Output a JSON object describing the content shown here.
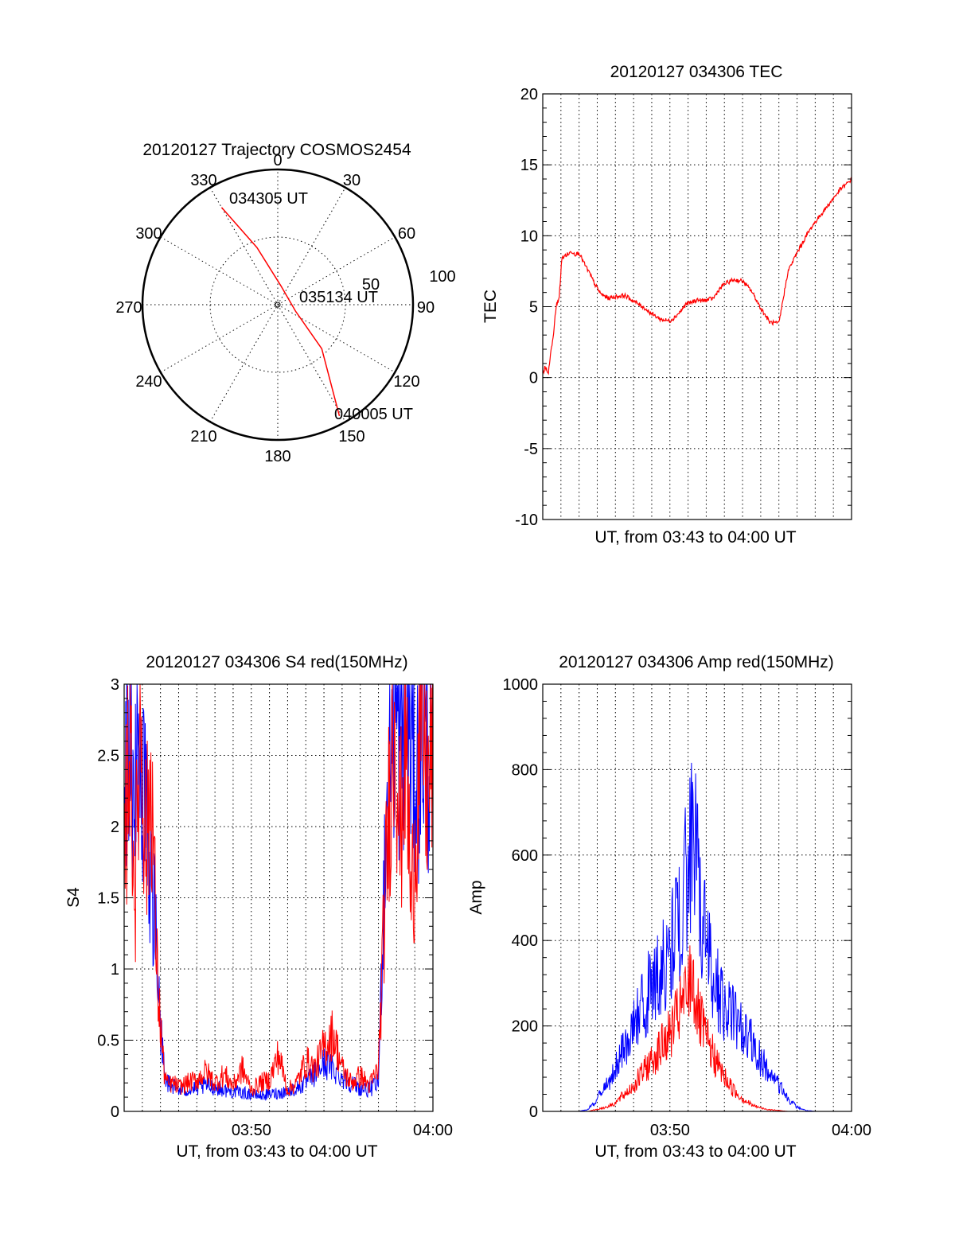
{
  "chart_data": [
    {
      "type": "polar",
      "title": "20120127 Trajectory COSMOS2454",
      "azimuth_labels": [
        "0",
        "30",
        "60",
        "90",
        "120",
        "150",
        "180",
        "210",
        "240",
        "270",
        "300",
        "330"
      ],
      "radial_labels": [
        "50",
        "100"
      ],
      "r_range": [
        0,
        100
      ],
      "grid": true,
      "colors": {
        "track": "#ff0000"
      },
      "track": {
        "points": [
          {
            "az": 330,
            "r": 83
          },
          {
            "az": 340,
            "r": 45
          },
          {
            "az": 10,
            "r": 14
          },
          {
            "az": 110,
            "r": 14
          },
          {
            "az": 135,
            "r": 46
          },
          {
            "az": 151,
            "r": 94
          }
        ],
        "annotations": [
          {
            "text": "034305 UT",
            "az": 330,
            "r": 83
          },
          {
            "text": "035134 UT",
            "az": 100,
            "r": 16
          },
          {
            "text": "040005 UT",
            "az": 151,
            "r": 94
          }
        ]
      }
    },
    {
      "type": "line",
      "title": "20120127 034306 TEC",
      "xlabel": "UT, from 03:43 to 04:00 UT",
      "ylabel": "TEC",
      "xlim": [
        0,
        17
      ],
      "ylim": [
        -10,
        20
      ],
      "yticks": [
        "20",
        "15",
        "10",
        "5",
        "0",
        "-5",
        "-10"
      ],
      "xticks": [],
      "grid": true,
      "series": [
        {
          "color": "#ff0000",
          "x": [
            0,
            0.15,
            0.3,
            0.45,
            0.6,
            0.75,
            0.9,
            1.05,
            1.2,
            1.4,
            1.6,
            1.8,
            2,
            2.3,
            2.6,
            2.9,
            3.2,
            3.6,
            4,
            4.5,
            5,
            5.5,
            6,
            6.5,
            7,
            7.3,
            7.6,
            7.9,
            8.2,
            8.5,
            8.8,
            9.1,
            9.4,
            9.7,
            10,
            10.5,
            11,
            11.5,
            12,
            12.5,
            13,
            13.5,
            14,
            14.3,
            14.6,
            14.9,
            15.2,
            15.5,
            15.8,
            16.1,
            16.4,
            16.7,
            17
          ],
          "y": [
            0.3,
            0.8,
            0.2,
            1.8,
            3.2,
            5.2,
            5.5,
            8.4,
            8.6,
            8.7,
            8.9,
            8.7,
            8.8,
            8.0,
            7.3,
            6.5,
            5.9,
            5.6,
            5.7,
            5.8,
            5.4,
            5.0,
            4.5,
            4.1,
            4.0,
            4.3,
            4.7,
            5.2,
            5.3,
            5.5,
            5.4,
            5.5,
            5.6,
            6.2,
            6.6,
            6.9,
            6.8,
            6.1,
            4.9,
            3.9,
            3.8,
            7.5,
            8.8,
            9.5,
            10.2,
            10.8,
            11.3,
            11.8,
            12.3,
            12.8,
            13.3,
            13.6,
            14.0
          ]
        }
      ]
    },
    {
      "type": "line",
      "title": "20120127 034306 S4 red(150MHz)",
      "xlabel": "UT, from 03:43 to 04:00 UT",
      "ylabel": "S4",
      "xlim": [
        0,
        17
      ],
      "ylim": [
        0,
        3
      ],
      "yticks": [
        "3",
        "2.5",
        "2",
        "1.5",
        "1",
        "0.5",
        "0"
      ],
      "xticks": [
        "03:50",
        "04:00"
      ],
      "grid": true,
      "series": [
        {
          "color": "#0000ff",
          "x": [
            0,
            0.3,
            0.6,
            0.9,
            1.2,
            1.5,
            1.8,
            2.0,
            2.2,
            2.4,
            2.7,
            3.0,
            3.5,
            4,
            4.5,
            5,
            5.5,
            6,
            6.5,
            7,
            7.5,
            8,
            8.5,
            9,
            9.5,
            10,
            10.5,
            11,
            11.5,
            12,
            12.5,
            13,
            13.5,
            14,
            14.3,
            14.6,
            14.9,
            15.2,
            15.5,
            15.8,
            16.1,
            16.4,
            16.7,
            17
          ],
          "y": [
            2.3,
            2.7,
            2.2,
            2.6,
            2.0,
            1.7,
            1.2,
            0.6,
            0.3,
            0.2,
            0.18,
            0.15,
            0.15,
            0.16,
            0.18,
            0.17,
            0.15,
            0.14,
            0.13,
            0.12,
            0.11,
            0.12,
            0.13,
            0.14,
            0.16,
            0.2,
            0.26,
            0.34,
            0.3,
            0.24,
            0.2,
            0.16,
            0.15,
            0.2,
            1.6,
            2.6,
            2.8,
            2.5,
            2.9,
            2.6,
            2.3,
            2.7,
            2.5,
            2.6
          ]
        },
        {
          "color": "#ff0000",
          "x": [
            0,
            0.3,
            0.6,
            0.9,
            1.2,
            1.5,
            1.8,
            2.0,
            2.2,
            2.4,
            2.7,
            3.0,
            3.5,
            4,
            4.5,
            5,
            5.5,
            6,
            6.5,
            7,
            7.5,
            8,
            8.5,
            9,
            9.5,
            10,
            10.5,
            11,
            11.5,
            12,
            12.5,
            13,
            13.5,
            14,
            14.3,
            14.6,
            14.9,
            15.2,
            15.5,
            15.8,
            16.1,
            16.4,
            16.7,
            17
          ],
          "y": [
            1.6,
            2.8,
            1.5,
            2.9,
            1.8,
            2.4,
            1.0,
            0.6,
            0.28,
            0.18,
            0.2,
            0.17,
            0.2,
            0.22,
            0.28,
            0.2,
            0.26,
            0.18,
            0.3,
            0.15,
            0.2,
            0.22,
            0.4,
            0.15,
            0.2,
            0.35,
            0.3,
            0.45,
            0.55,
            0.3,
            0.2,
            0.25,
            0.18,
            0.3,
            1.3,
            2.2,
            2.9,
            1.9,
            2.7,
            1.4,
            2.1,
            2.9,
            2.2,
            2.6
          ]
        }
      ]
    },
    {
      "type": "line",
      "title": "20120127 034306 Amp red(150MHz)",
      "xlabel": "UT, from 03:43 to 04:00 UT",
      "ylabel": "Amp",
      "xlim": [
        0,
        17
      ],
      "ylim": [
        0,
        1000
      ],
      "yticks": [
        "1000",
        "800",
        "600",
        "400",
        "200",
        "0"
      ],
      "xticks": [
        "03:50",
        "04:00"
      ],
      "grid": true,
      "series": [
        {
          "color": "#0000ff",
          "x": [
            0,
            1,
            2,
            2.5,
            3,
            3.5,
            4,
            4.5,
            5,
            5.5,
            6,
            6.5,
            7,
            7.5,
            8,
            8.2,
            8.4,
            8.6,
            9,
            9.5,
            10,
            10.5,
            11,
            11.5,
            12,
            12.5,
            13,
            13.5,
            14,
            14.5,
            15,
            15.5,
            16,
            16.5,
            17
          ],
          "y": [
            0,
            0,
            0,
            5,
            30,
            60,
            100,
            150,
            210,
            250,
            300,
            330,
            370,
            460,
            560,
            640,
            700,
            480,
            400,
            300,
            250,
            230,
            190,
            160,
            120,
            90,
            60,
            30,
            10,
            2,
            0,
            0,
            0,
            0,
            0
          ]
        },
        {
          "color": "#ff0000",
          "x": [
            0,
            1,
            2,
            2.5,
            3,
            3.5,
            4,
            4.5,
            5,
            5.5,
            6,
            6.5,
            7,
            7.5,
            8,
            8.2,
            8.4,
            8.6,
            9,
            9.5,
            10,
            10.5,
            11,
            11.5,
            12,
            12.5,
            13,
            13.5,
            14,
            14.5,
            15,
            15.5,
            16,
            16.5,
            17
          ],
          "y": [
            0,
            0,
            0,
            0,
            5,
            10,
            20,
            40,
            60,
            90,
            120,
            150,
            180,
            230,
            280,
            330,
            270,
            220,
            170,
            120,
            80,
            50,
            30,
            15,
            8,
            4,
            2,
            0,
            0,
            0,
            0,
            0,
            0,
            0,
            0
          ]
        }
      ]
    }
  ]
}
